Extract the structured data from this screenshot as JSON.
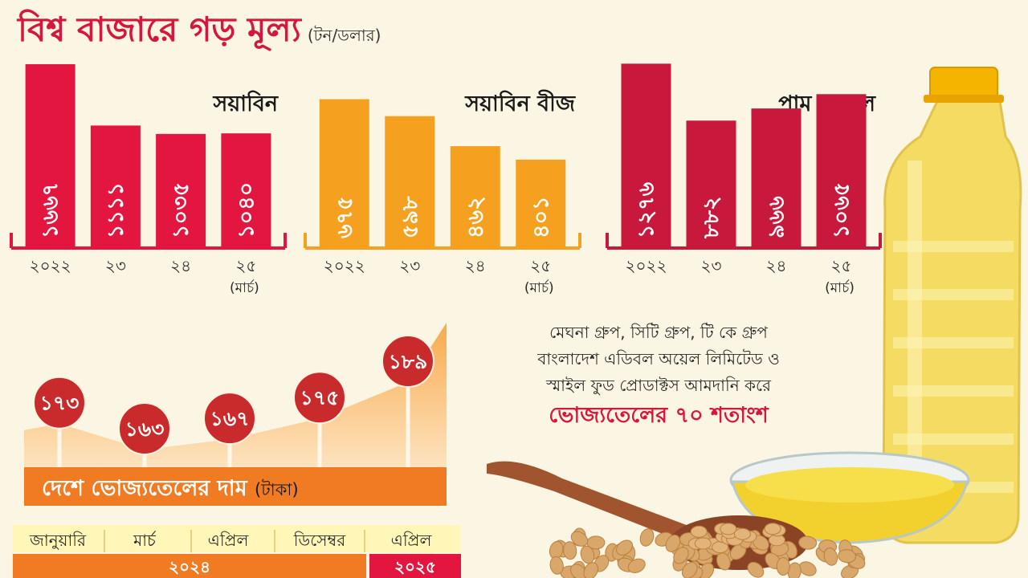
{
  "title": "বিশ্ব বাজারে গড় মূল্য",
  "title_unit": "(টন/ডলার)",
  "colors": {
    "soybean": "#e2163f",
    "soyseed": "#f5a11f",
    "palm": "#c8193d",
    "line_fill_top": "#f8aa4c",
    "marker": "#c92a2b",
    "banner": "#f07b22",
    "year_2025": "#e2163f",
    "soy_scoop": "#d9a76a",
    "bottle": "#f4dc62",
    "cap": "#f5b400"
  },
  "chart_data": [
    {
      "type": "bar",
      "title": "সয়াবিন",
      "categories": [
        "২০২২",
        "২৩",
        "২৪",
        "২৫"
      ],
      "category_notes": [
        "",
        "",
        "",
        "(মার্চ)"
      ],
      "values": [
        1667,
        1111,
        1035,
        1040
      ],
      "value_labels": [
        "১৬৬৭",
        "১১১১",
        "১০৩৫",
        "১০৪০"
      ],
      "ylim": [
        0,
        1900
      ]
    },
    {
      "type": "bar",
      "title": "সয়াবিন বীজ",
      "categories": [
        "২০২২",
        "২৩",
        "২৪",
        "২৫"
      ],
      "category_notes": [
        "",
        "",
        "",
        "(মার্চ)"
      ],
      "values": [
        675,
        598,
        462,
        401
      ],
      "value_labels": [
        "৬৭৫",
        "৫৯৮",
        "৪৬২",
        "৪০১"
      ],
      "ylim": [
        0,
        950
      ]
    },
    {
      "type": "bar",
      "title": "পাম অয়েল",
      "categories": [
        "২০২২",
        "২৩",
        "২৪",
        "২৫"
      ],
      "category_notes": [
        "",
        "",
        "",
        "(মার্চ)"
      ],
      "values": [
        1276,
        882,
        966,
        1065
      ],
      "value_labels": [
        "১২৭৬",
        "৮৮২",
        "৯৬৬",
        "১০৬৫"
      ],
      "ylim": [
        0,
        1450
      ]
    },
    {
      "type": "area",
      "title": "দেশে ভোজ্যতেলের দাম",
      "title_unit": "(টাকা)",
      "categories": [
        "জানুয়ারি",
        "মার্চ",
        "এপ্রিল",
        "ডিসেম্বর",
        "এপ্রিল"
      ],
      "values": [
        173,
        163,
        167,
        175,
        189
      ],
      "value_labels": [
        "১৭৩",
        "১৬৩",
        "১৬৭",
        "১৭৫",
        "১৮৯"
      ],
      "years": [
        {
          "label": "২০২৪",
          "months": [
            "জানুয়ারি",
            "মার্চ",
            "এপ্রিল",
            "ডিসেম্বর"
          ]
        },
        {
          "label": "২০২৫",
          "months": [
            "এপ্রিল"
          ]
        }
      ],
      "ylim": [
        150,
        195
      ]
    }
  ],
  "note": {
    "lines": [
      "মেঘনা গ্রুপ, সিটি গ্রুপ, টি কে গ্রুপ",
      "বাংলাদেশ এডিবল অয়েল লিমিটেড ও",
      "স্মাইল ফুড প্রোডাক্টস আমদানি করে"
    ],
    "highlight": "ভোজ্যতেলের ৭০ শতাংশ"
  }
}
